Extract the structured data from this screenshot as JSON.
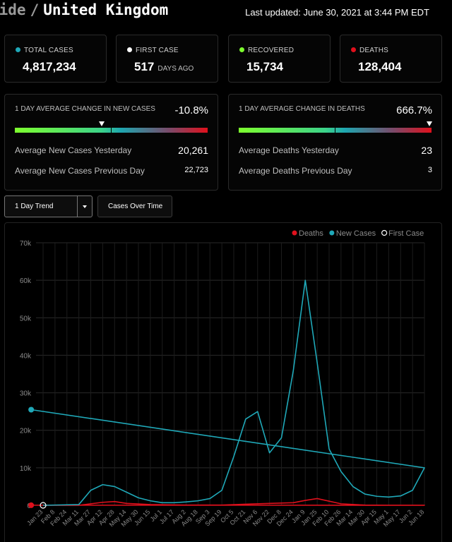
{
  "header": {
    "breadcrumb_prev": "wide",
    "breadcrumb_sep": "/",
    "country": "United Kingdom",
    "last_updated": "Last updated: June 30, 2021 at 3:44 PM EDT"
  },
  "stats": {
    "total_cases": {
      "label": "TOTAL CASES",
      "value": "4,817,234",
      "color": "#1fa8b8"
    },
    "first_case": {
      "label": "FIRST CASE",
      "value": "517",
      "unit": "DAYS AGO",
      "color": "#ffffff"
    },
    "recovered": {
      "label": "RECOVERED",
      "value": "15,734",
      "color": "#7dff2e"
    },
    "deaths": {
      "label": "DEATHS",
      "value": "128,404",
      "color": "#e0101c"
    }
  },
  "cases_change": {
    "title": "1 DAY AVERAGE CHANGE IN NEW CASES",
    "pct": "-10.8%",
    "marker_fraction": 0.45,
    "yesterday_label": "Average New Cases Yesterday",
    "yesterday_value": "20,261",
    "previous_label": "Average New Cases Previous Day",
    "previous_value": "22,723"
  },
  "deaths_change": {
    "title": "1 DAY AVERAGE CHANGE IN DEATHS",
    "pct": "666.7%",
    "marker_fraction": 0.99,
    "yesterday_label": "Average Deaths Yesterday",
    "yesterday_value": "23",
    "previous_label": "Average Deaths Previous Day",
    "previous_value": "3"
  },
  "controls": {
    "trend_select_value": "1 Day Trend",
    "cases_over_time_label": "Cases Over Time"
  },
  "chart_data": {
    "type": "line",
    "legend_position": "top-right",
    "grid": true,
    "y_ticks": [
      "0",
      "10k",
      "20k",
      "30k",
      "40k",
      "50k",
      "60k",
      "70k"
    ],
    "ylim": [
      0,
      70000
    ],
    "x_ticks": [
      "Jan 23",
      "Feb 8",
      "Feb 24",
      "Mar 11",
      "Mar 27",
      "Apr 12",
      "Apr 28",
      "May 14",
      "May 30",
      "Jun 15",
      "Jul 1",
      "Jul 17",
      "Aug 2",
      "Aug 18",
      "Sep 3",
      "Sep 19",
      "Oct 5",
      "Oct 21",
      "Nov 6",
      "Nov 22",
      "Dec 8",
      "Dec 24",
      "Jan 9",
      "Jan 25",
      "Feb 10",
      "Feb 26",
      "Mar 14",
      "Mar 30",
      "Apr 15",
      "May 1",
      "May 17",
      "Jun 2",
      "Jun 18"
    ],
    "series": [
      {
        "name": "Deaths",
        "color": "#e0101c",
        "x": [
          "Jan 23",
          "Mar 11",
          "Apr 12",
          "Apr 28",
          "May 14",
          "Jun 15",
          "Aug 2",
          "Sep 19",
          "Oct 21",
          "Nov 22",
          "Dec 24",
          "Jan 9",
          "Jan 25",
          "Feb 26",
          "Mar 30",
          "May 1",
          "Jun 18",
          "Jun 30"
        ],
        "values": [
          0,
          0,
          800,
          1000,
          500,
          200,
          50,
          50,
          300,
          500,
          700,
          1300,
          1800,
          400,
          50,
          20,
          20,
          23
        ]
      },
      {
        "name": "New Cases",
        "color": "#1fa8b8",
        "x": [
          "Jan 23",
          "Mar 11",
          "Mar 27",
          "Apr 12",
          "Apr 28",
          "May 14",
          "May 30",
          "Jun 15",
          "Jul 1",
          "Jul 17",
          "Aug 2",
          "Aug 18",
          "Sep 3",
          "Sep 19",
          "Oct 5",
          "Oct 21",
          "Nov 6",
          "Nov 22",
          "Dec 8",
          "Dec 24",
          "Jan 9",
          "Jan 25",
          "Feb 10",
          "Feb 26",
          "Mar 14",
          "Mar 30",
          "Apr 15",
          "May 1",
          "May 17",
          "Jun 2",
          "Jun 18",
          "Jun 30"
        ],
        "values": [
          0,
          200,
          4000,
          5500,
          5000,
          3500,
          2000,
          1200,
          700,
          700,
          900,
          1200,
          1800,
          4000,
          13000,
          23000,
          25000,
          14000,
          18000,
          36000,
          60000,
          38000,
          15000,
          9000,
          5000,
          3000,
          2400,
          2200,
          2500,
          4000,
          10000,
          25500
        ]
      },
      {
        "name": "First Case",
        "color": "#ffffff",
        "x": [
          "Jan 23"
        ],
        "values": [
          0
        ]
      }
    ]
  }
}
